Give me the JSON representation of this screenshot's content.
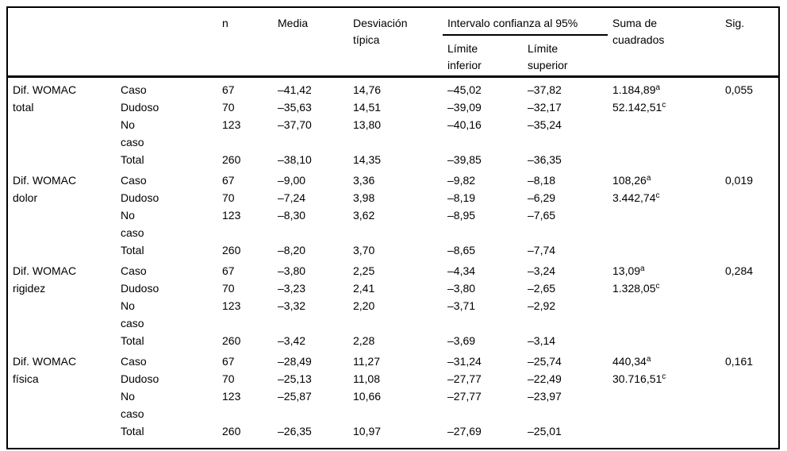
{
  "colors": {
    "text": "#000000",
    "background": "#ffffff",
    "rule": "#000000"
  },
  "table": {
    "headers": {
      "n": "n",
      "media": "Media",
      "sd": "Desviación típica",
      "ci": "Intervalo confianza al 95%",
      "ci_lower": "Límite inferior",
      "ci_upper": "Límite superior",
      "ss": "Suma de cuadrados",
      "sig": "Sig."
    },
    "groups": [
      {
        "label": "Dif. WOMAC total",
        "rows": [
          {
            "category": "Caso",
            "n": "67",
            "media": "–41,42",
            "sd": "14,76",
            "ci_lower": "–45,02",
            "ci_upper": "–37,82",
            "ss": "1.184,89",
            "ss_sup": "a",
            "sig": "0,055"
          },
          {
            "category": "Dudoso",
            "n": "70",
            "media": "–35,63",
            "sd": "14,51",
            "ci_lower": "–39,09",
            "ci_upper": "–32,17",
            "ss": "52.142,51",
            "ss_sup": "c",
            "sig": ""
          },
          {
            "category": "No caso",
            "n": "123",
            "media": "–37,70",
            "sd": "13,80",
            "ci_lower": "–40,16",
            "ci_upper": "–35,24",
            "ss": "",
            "ss_sup": "",
            "sig": ""
          },
          {
            "category": "Total",
            "n": "260",
            "media": "–38,10",
            "sd": "14,35",
            "ci_lower": "–39,85",
            "ci_upper": "–36,35",
            "ss": "",
            "ss_sup": "",
            "sig": ""
          }
        ]
      },
      {
        "label": "Dif. WOMAC dolor",
        "rows": [
          {
            "category": "Caso",
            "n": "67",
            "media": "–9,00",
            "sd": "3,36",
            "ci_lower": "–9,82",
            "ci_upper": "–8,18",
            "ss": "108,26",
            "ss_sup": "a",
            "sig": "0,019"
          },
          {
            "category": "Dudoso",
            "n": "70",
            "media": "–7,24",
            "sd": "3,98",
            "ci_lower": "–8,19",
            "ci_upper": "–6,29",
            "ss": "3.442,74",
            "ss_sup": "c",
            "sig": ""
          },
          {
            "category": "No caso",
            "n": "123",
            "media": "–8,30",
            "sd": "3,62",
            "ci_lower": "–8,95",
            "ci_upper": "–7,65",
            "ss": "",
            "ss_sup": "",
            "sig": ""
          },
          {
            "category": "Total",
            "n": "260",
            "media": "–8,20",
            "sd": "3,70",
            "ci_lower": "–8,65",
            "ci_upper": "–7,74",
            "ss": "",
            "ss_sup": "",
            "sig": ""
          }
        ]
      },
      {
        "label": "Dif. WOMAC rigidez",
        "rows": [
          {
            "category": "Caso",
            "n": "67",
            "media": "–3,80",
            "sd": "2,25",
            "ci_lower": "–4,34",
            "ci_upper": "–3,24",
            "ss": "13,09",
            "ss_sup": "a",
            "sig": "0,284"
          },
          {
            "category": "Dudoso",
            "n": "70",
            "media": "–3,23",
            "sd": "2,41",
            "ci_lower": "–3,80",
            "ci_upper": "–2,65",
            "ss": "1.328,05",
            "ss_sup": "c",
            "sig": ""
          },
          {
            "category": "No caso",
            "n": "123",
            "media": "–3,32",
            "sd": "2,20",
            "ci_lower": "–3,71",
            "ci_upper": "–2,92",
            "ss": "",
            "ss_sup": "",
            "sig": ""
          },
          {
            "category": "Total",
            "n": "260",
            "media": "–3,42",
            "sd": "2,28",
            "ci_lower": "–3,69",
            "ci_upper": "–3,14",
            "ss": "",
            "ss_sup": "",
            "sig": ""
          }
        ]
      },
      {
        "label": "Dif. WOMAC física",
        "rows": [
          {
            "category": "Caso",
            "n": "67",
            "media": "–28,49",
            "sd": "11,27",
            "ci_lower": "–31,24",
            "ci_upper": "–25,74",
            "ss": "440,34",
            "ss_sup": "a",
            "sig": "0,161"
          },
          {
            "category": "Dudoso",
            "n": "70",
            "media": "–25,13",
            "sd": "11,08",
            "ci_lower": "–27,77",
            "ci_upper": "–22,49",
            "ss": "30.716,51",
            "ss_sup": "c",
            "sig": ""
          },
          {
            "category": "No caso",
            "n": "123",
            "media": "–25,87",
            "sd": "10,66",
            "ci_lower": "–27,77",
            "ci_upper": "–23,97",
            "ss": "",
            "ss_sup": "",
            "sig": ""
          },
          {
            "category": "Total",
            "n": "260",
            "media": "–26,35",
            "sd": "10,97",
            "ci_lower": "–27,69",
            "ci_upper": "–25,01",
            "ss": "",
            "ss_sup": "",
            "sig": ""
          }
        ]
      }
    ]
  }
}
